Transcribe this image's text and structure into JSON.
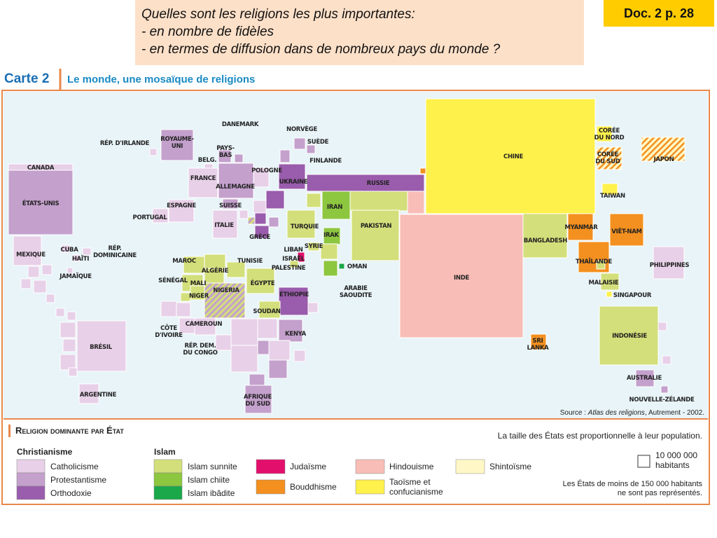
{
  "header": {
    "question": [
      "Quelles sont les religions les plus importantes:",
      "- en nombre de fidèles",
      "- en termes de diffusion dans de nombreux pays du monde ?"
    ],
    "doc": "Doc. 2 p. 28"
  },
  "map": {
    "label": "Carte 2",
    "title": "Le monde, une mosaïque de religions",
    "countries": [
      [
        "CANADA"
      ],
      [
        "ÉTATS-UNIS"
      ],
      [
        "MEXIQUE"
      ],
      [
        "CUBA"
      ],
      [
        "HAÏTI"
      ],
      [
        "RÉP.",
        "DOMINICAINE"
      ],
      [
        "JAMAÏQUE"
      ],
      [
        "BRÉSIL"
      ],
      [
        "ARGENTINE"
      ],
      [
        "RÉP. D'IRLANDE"
      ],
      [
        "ROYAUME-",
        "UNI"
      ],
      [
        "DANEMARK"
      ],
      [
        "PAYS-",
        "BAS"
      ],
      [
        "BELG."
      ],
      [
        "FRANCE"
      ],
      [
        "ALLEMAGNE"
      ],
      [
        "POLOGNE"
      ],
      [
        "NORVÈGE"
      ],
      [
        "SUÈDE"
      ],
      [
        "FINLANDE"
      ],
      [
        "UKRAINE"
      ],
      [
        "RUSSIE"
      ],
      [
        "ESPAGNE"
      ],
      [
        "SUISSE"
      ],
      [
        "PORTUGAL"
      ],
      [
        "ITALIE"
      ],
      [
        "TURQUIE"
      ],
      [
        "GRÈCE"
      ],
      [
        "IRAN"
      ],
      [
        "IRAK"
      ],
      [
        "PAKISTAN"
      ],
      [
        "LIBAN"
      ],
      [
        "ISRAËL"
      ],
      [
        "SYRIE"
      ],
      [
        "PALESTINE"
      ],
      [
        "OMAN"
      ],
      [
        "ARABIE",
        "SAOUDITE"
      ],
      [
        "MAROC"
      ],
      [
        "TUNISIE"
      ],
      [
        "ALGÉRIE"
      ],
      [
        "SÉNÉGAL"
      ],
      [
        "MALI"
      ],
      [
        "NIGERIA"
      ],
      [
        "ÉGYPTE"
      ],
      [
        "NIGER"
      ],
      [
        "ÉTHIOPIE"
      ],
      [
        "SOUDAN"
      ],
      [
        "CAMEROUN"
      ],
      [
        "CÔTE",
        "D'IVOIRE"
      ],
      [
        "KENYA"
      ],
      [
        "RÉP. DEM.",
        "DU CONGO"
      ],
      [
        "AFRIQUE",
        "DU SUD"
      ],
      [
        "CHINE"
      ],
      [
        "CORÉE",
        "DU NORD"
      ],
      [
        "CORÉE",
        "DU SUD"
      ],
      [
        "JAPON"
      ],
      [
        "TAIWAN"
      ],
      [
        "INDE"
      ],
      [
        "BANGLADESH"
      ],
      [
        "MYANMAR"
      ],
      [
        "VIÊT-NAM"
      ],
      [
        "THAÏLANDE"
      ],
      [
        "MALAISIE"
      ],
      [
        "SINGAPOUR"
      ],
      [
        "PHILIPPINES"
      ],
      [
        "INDONÉSIE"
      ],
      [
        "SRI",
        "LANKA"
      ],
      [
        "AUSTRALIE"
      ],
      [
        "NOUVELLE-ZÉLANDE"
      ]
    ],
    "source": [
      "Source : ",
      "Atlas des religions",
      ", Autrement - 2002."
    ]
  },
  "legend": {
    "title": "Religion dominante par État",
    "note": "La taille des États est proportionnelle à leur population.",
    "scale": [
      "10 000 000",
      "habitants"
    ],
    "footnote": [
      "Les États de moins de 150 000 habitants",
      "ne sont pas représentés."
    ],
    "groups": [
      {
        "name": "Christianisme",
        "items": [
          {
            "name": "Catholicisme",
            "color": "#e8d0e8"
          },
          {
            "name": "Protestantisme",
            "color": "#c4a0cc"
          },
          {
            "name": "Orthodoxie",
            "color": "#9a5cac"
          }
        ]
      },
      {
        "name": "Islam",
        "items": [
          {
            "name": "Islam sunnite",
            "color": "#d3df7a"
          },
          {
            "name": "Islam chiite",
            "color": "#8dc63f"
          },
          {
            "name": "Islam ibâdite",
            "color": "#1ba84a"
          }
        ]
      },
      {
        "items": [
          {
            "name": "Judaïsme",
            "color": "#e2106c"
          },
          {
            "name": "Bouddhisme",
            "color": "#f39020"
          }
        ]
      },
      {
        "items": [
          {
            "name": "Hindouisme",
            "color": "#f8bdb6"
          },
          {
            "name": [
              "Taoïsme et",
              "confucianisme"
            ],
            "color": "#fff14c"
          }
        ]
      },
      {
        "items": [
          {
            "name": "Shintoïsme",
            "color": "#fff8c6"
          }
        ]
      }
    ]
  }
}
